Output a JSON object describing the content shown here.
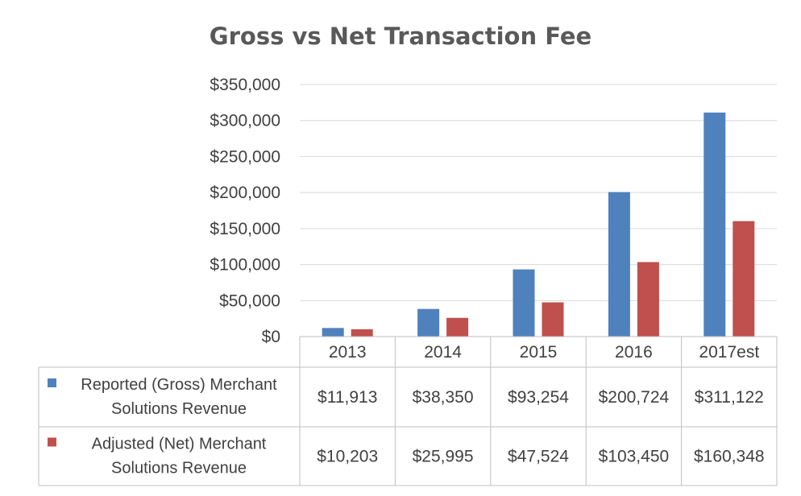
{
  "chart_data": {
    "type": "bar",
    "title": "Gross vs Net Transaction Fee",
    "categories": [
      "2013",
      "2014",
      "2015",
      "2016",
      "2017est"
    ],
    "ylim": [
      0,
      350000
    ],
    "y_ticks": [
      0,
      50000,
      100000,
      150000,
      200000,
      250000,
      300000,
      350000
    ],
    "y_tick_labels": [
      "$0",
      "$50,000",
      "$100,000",
      "$150,000",
      "$200,000",
      "$250,000",
      "$300,000",
      "$350,000"
    ],
    "grid": true,
    "series": [
      {
        "name_lines": [
          "Reported (Gross) Merchant",
          "Solutions Revenue"
        ],
        "color": "#4f81bd",
        "values": [
          11913,
          38350,
          93254,
          200724,
          311122
        ],
        "labels": [
          "$11,913",
          "$38,350",
          "$93,254",
          "$200,724",
          "$311,122"
        ]
      },
      {
        "name_lines": [
          "Adjusted (Net) Merchant",
          "Solutions Revenue"
        ],
        "color": "#c0504d",
        "values": [
          10203,
          25995,
          47524,
          103450,
          160348
        ],
        "labels": [
          "$10,203",
          "$25,995",
          "$47,524",
          "$103,450",
          "$160,348"
        ]
      }
    ],
    "legend_placement": "data-table",
    "gridline_color": "#d9d9d9"
  }
}
